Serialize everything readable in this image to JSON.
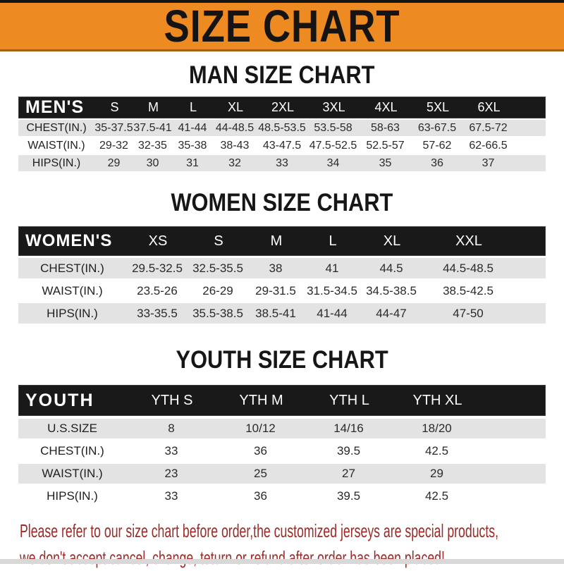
{
  "banner": {
    "title": "SIZE CHART",
    "bg_color": "#ED8A22",
    "text_color": "#141414"
  },
  "colors": {
    "bar_black": "#191919",
    "row_gray": "#E3E3E3",
    "footer_red": "#9C2B27",
    "banner_orange": "#ED8A22"
  },
  "chart_data": [
    {
      "type": "table",
      "title": "MAN SIZE CHART",
      "corner_label": "MEN'S",
      "columns": [
        "S",
        "M",
        "L",
        "XL",
        "2XL",
        "3XL",
        "4XL",
        "5XL",
        "6XL"
      ],
      "rows": [
        {
          "label": "CHEST(IN.)",
          "values": [
            "35-37.5",
            "37.5-41",
            "41-44",
            "44-48.5",
            "48.5-53.5",
            "53.5-58",
            "58-63",
            "63-67.5",
            "67.5-72"
          ]
        },
        {
          "label": "WAIST(IN.)",
          "values": [
            "29-32",
            "32-35",
            "35-38",
            "38-43",
            "43-47.5",
            "47.5-52.5",
            "52.5-57",
            "57-62",
            "62-66.5"
          ]
        },
        {
          "label": "HIPS(IN.)",
          "values": [
            "29",
            "30",
            "31",
            "32",
            "33",
            "34",
            "35",
            "36",
            "37"
          ]
        }
      ]
    },
    {
      "type": "table",
      "title": "WOMEN SIZE CHART",
      "corner_label": "WOMEN'S",
      "columns": [
        "XS",
        "S",
        "M",
        "L",
        "XL",
        "XXL"
      ],
      "rows": [
        {
          "label": "CHEST(IN.)",
          "values": [
            "29.5-32.5",
            "32.5-35.5",
            "38",
            "41",
            "44.5",
            "44.5-48.5"
          ]
        },
        {
          "label": "WAIST(IN.)",
          "values": [
            "23.5-26",
            "26-29",
            "29-31.5",
            "31.5-34.5",
            "34.5-38.5",
            "38.5-42.5"
          ]
        },
        {
          "label": "HIPS(IN.)",
          "values": [
            "33-35.5",
            "35.5-38.5",
            "38.5-41",
            "41-44",
            "44-47",
            "47-50"
          ]
        }
      ]
    },
    {
      "type": "table",
      "title": "YOUTH SIZE CHART",
      "corner_label": "YOUTH",
      "columns": [
        "YTH S",
        "YTH M",
        "YTH L",
        "YTH XL"
      ],
      "rows": [
        {
          "label": "U.S.SIZE",
          "values": [
            "8",
            "10/12",
            "14/16",
            "18/20"
          ]
        },
        {
          "label": "CHEST(IN.)",
          "values": [
            "33",
            "36",
            "39.5",
            "42.5"
          ]
        },
        {
          "label": "WAIST(IN.)",
          "values": [
            "23",
            "25",
            "27",
            "29"
          ]
        },
        {
          "label": "HIPS(IN.)",
          "values": [
            "33",
            "36",
            "39.5",
            "42.5"
          ]
        }
      ]
    }
  ],
  "footer": {
    "line1": "Please refer to our size chart before order,the customized jerseys are special products,",
    "line2": "we don't accept cancel, change, teturn or refund after order has been placed!"
  }
}
